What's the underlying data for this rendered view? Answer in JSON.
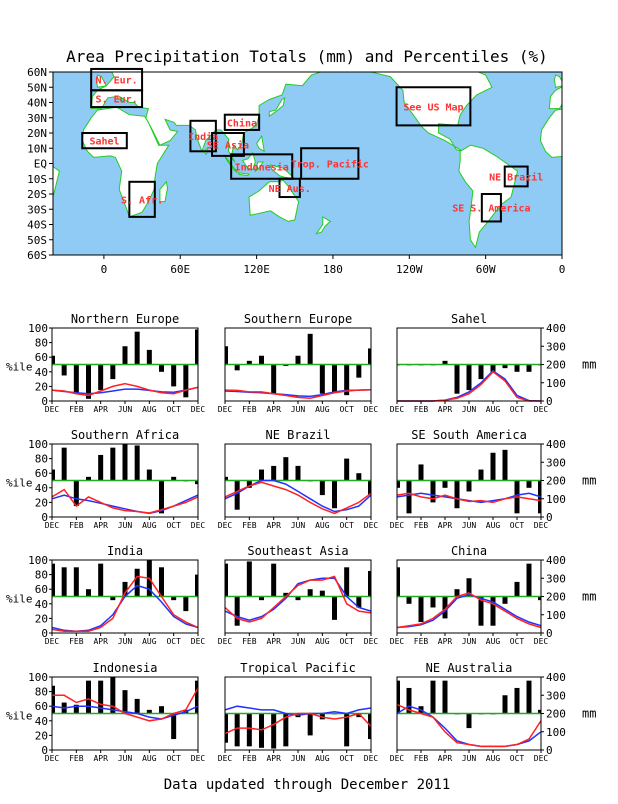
{
  "title": "Area Precipitation Totals (mm) and Percentiles (%)",
  "footer": "Data updated through December 2011",
  "colors": {
    "ocean": "#8fcbf5",
    "land": "#ffffff",
    "coast": "#22cc22",
    "box_label": "#ff3333",
    "red_line": "#ff2222",
    "blue_line": "#2233ff",
    "green_line": "#22aa22"
  },
  "map": {
    "lat_labels": [
      "60N",
      "50N",
      "40N",
      "30N",
      "20N",
      "10N",
      "EQ",
      "10S",
      "20S",
      "30S",
      "40S",
      "50S",
      "60S"
    ],
    "lon_labels": [
      "0",
      "60E",
      "120E",
      "180",
      "120W",
      "60W",
      "0"
    ],
    "regions": [
      {
        "label": "N. Eur.",
        "lon": [
          -10,
          30
        ],
        "lat": [
          48,
          62
        ]
      },
      {
        "label": "S. Eur.",
        "lon": [
          -10,
          30
        ],
        "lat": [
          37,
          48
        ]
      },
      {
        "label": "Sahel",
        "lon": [
          -17,
          18
        ],
        "lat": [
          10,
          20
        ]
      },
      {
        "label": "India",
        "lon": [
          68,
          88
        ],
        "lat": [
          8,
          28
        ]
      },
      {
        "label": "China",
        "lon": [
          95,
          122
        ],
        "lat": [
          22,
          32
        ]
      },
      {
        "label": "SE Asia",
        "lon": [
          85,
          110
        ],
        "lat": [
          5,
          20
        ]
      },
      {
        "label": "Indonesia",
        "lon": [
          100,
          148
        ],
        "lat": [
          -10,
          6
        ]
      },
      {
        "label": "Trop. Pacific",
        "lon": [
          155,
          200
        ],
        "lat": [
          -10,
          10
        ]
      },
      {
        "label": "NE Aus.",
        "lon": [
          138,
          154
        ],
        "lat": [
          -22,
          -10
        ]
      },
      {
        "label": "S. Afr.",
        "lon": [
          20,
          40
        ],
        "lat": [
          -35,
          -12
        ]
      },
      {
        "label": "See US Map",
        "lon": [
          230,
          288
        ],
        "lat": [
          25,
          50
        ]
      },
      {
        "label": "NE Brazil",
        "lon": [
          315,
          333
        ],
        "lat": [
          -15,
          -2
        ]
      },
      {
        "label": "SE S. America",
        "lon": [
          297,
          312
        ],
        "lat": [
          -38,
          -20
        ]
      }
    ]
  },
  "axis_labels": {
    "percentile": "%ile",
    "mm": "mm"
  },
  "chart_data": {
    "type": "bar",
    "months": [
      "DEC",
      "FEB",
      "APR",
      "JUN",
      "AUG",
      "OCT",
      "DEC"
    ],
    "percentile_axis": {
      "ylim": [
        0,
        100
      ],
      "ticks": [
        "0",
        "20",
        "40",
        "60",
        "80",
        "100"
      ]
    },
    "mm_axis": {
      "ylim": [
        0,
        400
      ],
      "ticks": [
        "0",
        "100",
        "200",
        "300",
        "400"
      ]
    },
    "baseline": 50,
    "panels": [
      {
        "title": "Northern Europe",
        "bars": [
          62,
          35,
          10,
          3,
          15,
          30,
          75,
          95,
          70,
          40,
          20,
          5,
          98
        ],
        "red": [
          60,
          55,
          40,
          30,
          55,
          80,
          95,
          80,
          60,
          45,
          40,
          60,
          75
        ],
        "blue": [
          60,
          52,
          45,
          40,
          45,
          55,
          65,
          65,
          58,
          50,
          48,
          60,
          75
        ]
      },
      {
        "title": "Southern Europe",
        "bars": [
          75,
          42,
          55,
          62,
          10,
          48,
          62,
          92,
          10,
          12,
          8,
          32,
          72
        ],
        "red": [
          60,
          58,
          50,
          50,
          40,
          30,
          20,
          15,
          30,
          45,
          55,
          60,
          62
        ],
        "blue": [
          55,
          52,
          48,
          45,
          40,
          35,
          28,
          25,
          35,
          50,
          58,
          60,
          62
        ]
      },
      {
        "title": "Sahel",
        "bars": [
          50,
          50,
          50,
          50,
          55,
          10,
          15,
          30,
          40,
          45,
          40,
          40,
          50
        ],
        "red": [
          0,
          0,
          0,
          0,
          5,
          15,
          40,
          90,
          160,
          110,
          20,
          0,
          0
        ],
        "blue": [
          0,
          0,
          0,
          0,
          5,
          20,
          50,
          100,
          165,
          120,
          30,
          2,
          0
        ]
      },
      {
        "title": "Southern Africa",
        "bars": [
          65,
          95,
          15,
          55,
          85,
          95,
          100,
          98,
          65,
          5,
          55,
          50,
          45
        ],
        "red": [
          110,
          150,
          60,
          110,
          80,
          50,
          35,
          30,
          22,
          40,
          60,
          80,
          110
        ],
        "blue": [
          100,
          120,
          100,
          90,
          75,
          60,
          45,
          30,
          20,
          35,
          60,
          90,
          120
        ]
      },
      {
        "title": "NE Brazil",
        "bars": [
          55,
          10,
          40,
          65,
          70,
          82,
          70,
          50,
          30,
          12,
          80,
          60,
          30
        ],
        "red": [
          110,
          140,
          170,
          190,
          170,
          150,
          120,
          80,
          45,
          20,
          50,
          80,
          130
        ],
        "blue": [
          100,
          130,
          170,
          200,
          200,
          180,
          140,
          100,
          60,
          30,
          40,
          60,
          120
        ]
      },
      {
        "title": "SE South America",
        "bars": [
          40,
          5,
          72,
          20,
          40,
          12,
          35,
          65,
          88,
          92,
          5,
          40,
          5
        ],
        "red": [
          120,
          130,
          110,
          100,
          120,
          100,
          85,
          90,
          80,
          100,
          110,
          100,
          90
        ],
        "blue": [
          110,
          120,
          130,
          120,
          110,
          100,
          90,
          80,
          90,
          100,
          120,
          130,
          110
        ]
      },
      {
        "title": "India",
        "bars": [
          95,
          90,
          90,
          60,
          95,
          45,
          70,
          88,
          100,
          90,
          45,
          30,
          80
        ],
        "red": [
          20,
          10,
          10,
          10,
          30,
          80,
          220,
          310,
          300,
          200,
          100,
          60,
          30
        ],
        "blue": [
          30,
          15,
          10,
          15,
          40,
          100,
          200,
          260,
          240,
          170,
          90,
          50,
          30
        ]
      },
      {
        "title": "Southeast Asia",
        "bars": [
          95,
          10,
          98,
          45,
          95,
          55,
          45,
          60,
          58,
          18,
          90,
          35,
          85
        ],
        "red": [
          140,
          80,
          60,
          80,
          140,
          200,
          260,
          290,
          290,
          310,
          160,
          120,
          110
        ],
        "blue": [
          120,
          90,
          70,
          90,
          130,
          190,
          270,
          290,
          300,
          300,
          200,
          140,
          120
        ]
      },
      {
        "title": "China",
        "bars": [
          90,
          40,
          15,
          35,
          20,
          60,
          75,
          10,
          10,
          40,
          70,
          95,
          45
        ],
        "red": [
          30,
          40,
          50,
          80,
          130,
          200,
          220,
          180,
          160,
          120,
          80,
          50,
          30
        ],
        "blue": [
          30,
          35,
          45,
          70,
          120,
          190,
          210,
          190,
          170,
          130,
          90,
          60,
          40
        ]
      },
      {
        "title": "Indonesia",
        "bars": [
          88,
          65,
          62,
          95,
          95,
          100,
          82,
          70,
          55,
          60,
          15,
          55,
          95
        ],
        "red": [
          300,
          300,
          260,
          280,
          250,
          240,
          200,
          180,
          160,
          170,
          200,
          220,
          340
        ],
        "blue": [
          240,
          230,
          240,
          240,
          230,
          220,
          210,
          200,
          180,
          170,
          190,
          210,
          240
        ]
      },
      {
        "title": "Tropical Pacific",
        "bars": [
          10,
          5,
          5,
          3,
          2,
          5,
          45,
          20,
          42,
          50,
          5,
          45,
          15
        ],
        "red": [
          90,
          120,
          120,
          110,
          140,
          180,
          200,
          200,
          180,
          170,
          180,
          200,
          130
        ],
        "blue": [
          220,
          240,
          230,
          220,
          220,
          200,
          190,
          200,
          200,
          210,
          200,
          220,
          230
        ]
      },
      {
        "title": "NE Australia",
        "bars": [
          95,
          85,
          60,
          95,
          95,
          50,
          30,
          50,
          50,
          75,
          85,
          95,
          55
        ],
        "red": [
          250,
          220,
          200,
          180,
          100,
          40,
          30,
          20,
          20,
          20,
          30,
          60,
          160
        ],
        "blue": [
          200,
          240,
          220,
          180,
          120,
          50,
          30,
          20,
          20,
          20,
          30,
          50,
          100
        ]
      }
    ]
  }
}
